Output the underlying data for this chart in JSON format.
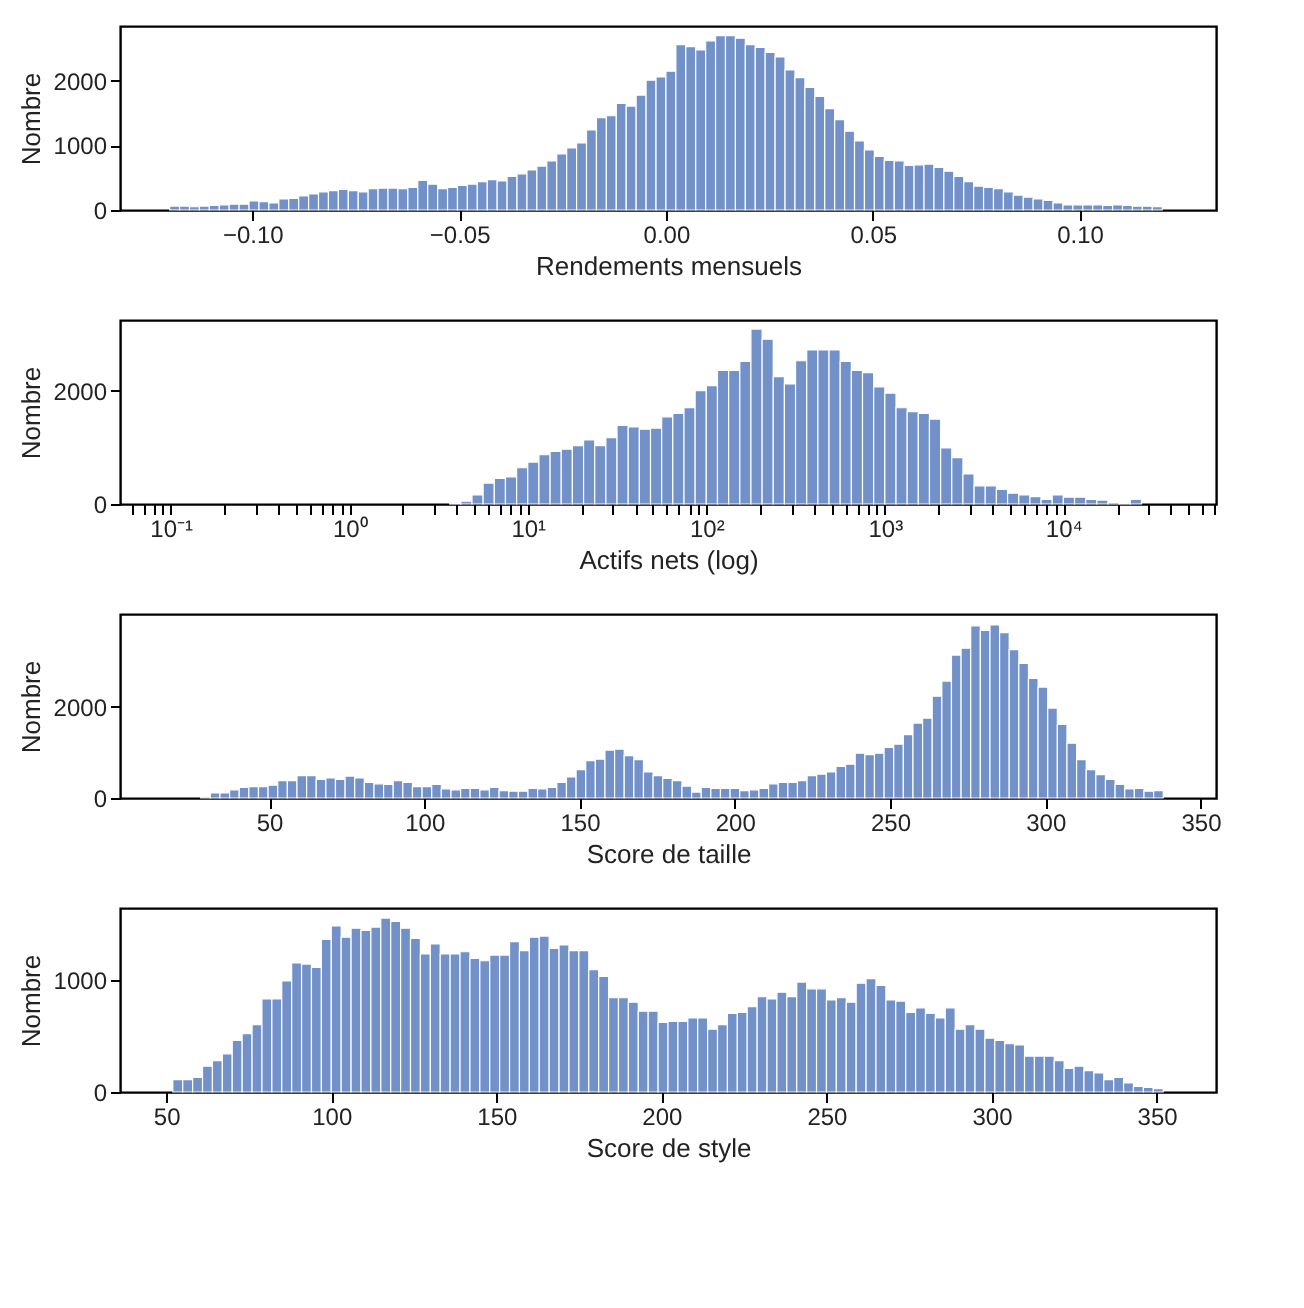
{
  "chart_data": [
    {
      "type": "histogram",
      "color": "#7191c8",
      "xlabel": "Rendements mensuels",
      "ylabel": "Nombre",
      "grid": false,
      "xlim": [
        -0.132,
        0.133
      ],
      "ylim": [
        0,
        2850
      ],
      "xticks": [
        {
          "value": -0.1,
          "label": "−0.10"
        },
        {
          "value": -0.05,
          "label": "−0.05"
        },
        {
          "value": 0,
          "label": "0.00"
        },
        {
          "value": 0.05,
          "label": "0.05"
        },
        {
          "value": 0.1,
          "label": "0.10"
        }
      ],
      "yticks": [
        0,
        1000,
        2000
      ],
      "bins": [
        -0.12,
        -0.1176,
        -0.1152,
        -0.1128,
        -0.1104,
        -0.108,
        -0.1056,
        -0.1032,
        -0.1008,
        -0.0984,
        -0.096,
        -0.0936,
        -0.0912,
        -0.0888,
        -0.0864,
        -0.084,
        -0.0816,
        -0.0792,
        -0.0768,
        -0.0744,
        -0.072,
        -0.0696,
        -0.0672,
        -0.0648,
        -0.0624,
        -0.06,
        -0.0576,
        -0.0552,
        -0.0528,
        -0.0504,
        -0.048,
        -0.0456,
        -0.0432,
        -0.0408,
        -0.0384,
        -0.036,
        -0.0336,
        -0.0312,
        -0.0288,
        -0.0264,
        -0.024,
        -0.0216,
        -0.0192,
        -0.0168,
        -0.0144,
        -0.012,
        -0.0096,
        -0.0072,
        -0.0048,
        -0.0024,
        0,
        0.0024,
        0.0048,
        0.0072,
        0.0096,
        0.012,
        0.0144,
        0.0168,
        0.0192,
        0.0216,
        0.024,
        0.0264,
        0.0288,
        0.0312,
        0.0336,
        0.036,
        0.0384,
        0.0408,
        0.0432,
        0.0456,
        0.048,
        0.0504,
        0.0528,
        0.0552,
        0.0576,
        0.06,
        0.0624,
        0.0648,
        0.0672,
        0.0696,
        0.072,
        0.0744,
        0.0768,
        0.0792,
        0.0816,
        0.084,
        0.0864,
        0.0888,
        0.0912,
        0.0936,
        0.096,
        0.0984,
        0.1008,
        0.1032,
        0.1056,
        0.108,
        0.1104,
        0.1128,
        0.1152,
        0.1176,
        0.12
      ],
      "values": [
        60,
        60,
        50,
        60,
        70,
        80,
        90,
        90,
        140,
        130,
        110,
        170,
        180,
        220,
        250,
        280,
        300,
        320,
        300,
        280,
        330,
        340,
        340,
        330,
        350,
        460,
        400,
        330,
        350,
        380,
        400,
        440,
        470,
        450,
        520,
        560,
        620,
        680,
        760,
        870,
        960,
        1040,
        1240,
        1430,
        1460,
        1650,
        1610,
        1780,
        2010,
        2060,
        2150,
        2560,
        2530,
        2480,
        2620,
        2700,
        2700,
        2660,
        2560,
        2520,
        2440,
        2370,
        2170,
        2050,
        1900,
        1760,
        1570,
        1400,
        1220,
        1070,
        930,
        830,
        770,
        760,
        690,
        700,
        710,
        660,
        600,
        520,
        440,
        370,
        350,
        330,
        280,
        230,
        200,
        170,
        150,
        110,
        80,
        80,
        80,
        80,
        70,
        80,
        70,
        60,
        60,
        50
      ]
    },
    {
      "type": "histogram",
      "color": "#7191c8",
      "xlabel": "Actifs nets (log)",
      "ylabel": "Nombre",
      "grid": false,
      "log": "x",
      "xlim": [
        0.052,
        71600
      ],
      "ylim": [
        0,
        3250
      ],
      "xticks": [
        {
          "value": 0.06,
          "label": null
        },
        {
          "value": 0.07,
          "label": null
        },
        {
          "value": 0.08,
          "label": null
        },
        {
          "value": 0.09,
          "label": null
        },
        {
          "value": 0.1,
          "label": "10⁻¹"
        },
        {
          "value": 0.2,
          "label": null
        },
        {
          "value": 0.3,
          "label": null
        },
        {
          "value": 0.4,
          "label": null
        },
        {
          "value": 0.5,
          "label": null
        },
        {
          "value": 0.6,
          "label": null
        },
        {
          "value": 0.7,
          "label": null
        },
        {
          "value": 0.8,
          "label": null
        },
        {
          "value": 0.9,
          "label": null
        },
        {
          "value": 1,
          "label": "10⁰"
        },
        {
          "value": 2,
          "label": null
        },
        {
          "value": 3,
          "label": null
        },
        {
          "value": 4,
          "label": null
        },
        {
          "value": 5,
          "label": null
        },
        {
          "value": 6,
          "label": null
        },
        {
          "value": 7,
          "label": null
        },
        {
          "value": 8,
          "label": null
        },
        {
          "value": 9,
          "label": null
        },
        {
          "value": 10,
          "label": "10¹"
        },
        {
          "value": 20,
          "label": null
        },
        {
          "value": 30,
          "label": null
        },
        {
          "value": 40,
          "label": null
        },
        {
          "value": 50,
          "label": null
        },
        {
          "value": 60,
          "label": null
        },
        {
          "value": 70,
          "label": null
        },
        {
          "value": 80,
          "label": null
        },
        {
          "value": 90,
          "label": null
        },
        {
          "value": 100,
          "label": "10²"
        },
        {
          "value": 200,
          "label": null
        },
        {
          "value": 300,
          "label": null
        },
        {
          "value": 400,
          "label": null
        },
        {
          "value": 500,
          "label": null
        },
        {
          "value": 600,
          "label": null
        },
        {
          "value": 700,
          "label": null
        },
        {
          "value": 800,
          "label": null
        },
        {
          "value": 900,
          "label": null
        },
        {
          "value": 1000,
          "label": "10³"
        },
        {
          "value": 2000,
          "label": null
        },
        {
          "value": 3000,
          "label": null
        },
        {
          "value": 4000,
          "label": null
        },
        {
          "value": 5000,
          "label": null
        },
        {
          "value": 6000,
          "label": null
        },
        {
          "value": 7000,
          "label": null
        },
        {
          "value": 8000,
          "label": null
        },
        {
          "value": 9000,
          "label": null
        },
        {
          "value": 10000,
          "label": "10⁴"
        },
        {
          "value": 20000,
          "label": null
        },
        {
          "value": 30000,
          "label": null
        },
        {
          "value": 40000,
          "label": null
        },
        {
          "value": 50000,
          "label": null
        },
        {
          "value": 60000,
          "label": null
        },
        {
          "value": 70000,
          "label": null
        }
      ],
      "yticks": [
        0,
        2000
      ],
      "bins": [
        3.652,
        4.217,
        4.87,
        5.623,
        6.494,
        7.499,
        8.66,
        10,
        11.55,
        13.34,
        15.4,
        17.78,
        20.54,
        23.71,
        27.38,
        31.62,
        36.52,
        42.17,
        48.7,
        56.23,
        64.94,
        74.99,
        86.6,
        100,
        115.5,
        133.4,
        154,
        177.8,
        205.4,
        237.1,
        273.8,
        316.2,
        365.2,
        421.7,
        487,
        562.3,
        649.4,
        749.9,
        866,
        1000,
        1155,
        1334,
        1540,
        1778,
        2054,
        2371,
        2738,
        3162,
        3652,
        4217,
        4870,
        5623,
        6494,
        7499,
        8660,
        10000,
        11550,
        13340,
        15400,
        17780,
        20540,
        23710,
        27380
      ],
      "values": [
        20,
        50,
        160,
        370,
        450,
        480,
        640,
        740,
        870,
        930,
        970,
        1030,
        1130,
        1030,
        1170,
        1390,
        1360,
        1320,
        1340,
        1540,
        1600,
        1700,
        2000,
        2090,
        2360,
        2360,
        2520,
        3090,
        2910,
        2250,
        2120,
        2530,
        2720,
        2720,
        2720,
        2520,
        2360,
        2320,
        2070,
        1960,
        1700,
        1630,
        1600,
        1500,
        990,
        820,
        530,
        320,
        320,
        260,
        190,
        160,
        130,
        80,
        160,
        120,
        120,
        80,
        70,
        30,
        20,
        80
      ]
    },
    {
      "type": "histogram",
      "color": "#7191c8",
      "xlabel": "Score de taille",
      "ylabel": "Nombre",
      "grid": false,
      "xlim": [
        2,
        355
      ],
      "ylim": [
        0,
        4030
      ],
      "xticks": [
        50,
        100,
        150,
        200,
        250,
        300,
        350
      ],
      "yticks": [
        0,
        2000
      ],
      "bins": [
        28,
        31.1,
        34.2,
        37.3,
        40.4,
        43.5,
        46.6,
        49.7,
        52.8,
        55.9,
        59,
        62.1,
        65.2,
        68.3,
        71.4,
        74.5,
        77.6,
        80.7,
        83.8,
        86.9,
        90,
        93.1,
        96.2,
        99.3,
        102.4,
        105.5,
        108.6,
        111.7,
        114.8,
        117.9,
        121,
        124.1,
        127.2,
        130.3,
        133.4,
        136.5,
        139.6,
        142.7,
        145.8,
        148.9,
        152,
        155.1,
        158.2,
        161.3,
        164.4,
        167.5,
        170.6,
        173.7,
        176.8,
        179.9,
        183,
        186.1,
        189.2,
        192.3,
        195.4,
        198.5,
        201.6,
        204.7,
        207.8,
        210.9,
        214,
        217.1,
        220.2,
        223.3,
        226.4,
        229.5,
        232.6,
        235.7,
        238.8,
        241.9,
        245,
        248.1,
        251.2,
        254.3,
        257.4,
        260.5,
        263.6,
        266.7,
        269.8,
        272.9,
        276,
        279.1,
        282.2,
        285.3,
        288.4,
        291.5,
        294.6,
        297.7,
        300.8,
        303.9,
        307,
        310.1,
        313.2,
        316.3,
        319.4,
        322.5,
        325.6,
        328.7,
        331.8,
        334.9,
        338
      ],
      "values": [
        30,
        110,
        110,
        180,
        230,
        250,
        250,
        280,
        380,
        380,
        490,
        490,
        410,
        440,
        410,
        480,
        440,
        340,
        310,
        300,
        380,
        340,
        250,
        250,
        300,
        200,
        180,
        210,
        210,
        180,
        230,
        160,
        150,
        150,
        210,
        200,
        230,
        340,
        460,
        620,
        820,
        850,
        1050,
        1070,
        930,
        840,
        570,
        490,
        430,
        380,
        260,
        130,
        230,
        210,
        210,
        210,
        160,
        180,
        210,
        310,
        340,
        340,
        380,
        490,
        520,
        570,
        690,
        740,
        980,
        950,
        980,
        1110,
        1180,
        1390,
        1640,
        1750,
        2230,
        2560,
        3130,
        3280,
        3770,
        3670,
        3790,
        3620,
        3250,
        2950,
        2620,
        2430,
        1970,
        1610,
        1200,
        840,
        620,
        510,
        410,
        300,
        200,
        210,
        150,
        160
      ]
    },
    {
      "type": "histogram",
      "color": "#7191c8",
      "xlabel": "Score de style",
      "ylabel": "Nombre",
      "grid": false,
      "xlim": [
        36,
        368
      ],
      "ylim": [
        0,
        1640
      ],
      "xticks": [
        50,
        100,
        150,
        200,
        250,
        300,
        350
      ],
      "yticks": [
        0,
        1000
      ],
      "bins": [
        52,
        55,
        58,
        61,
        64,
        67,
        70,
        73,
        76,
        79,
        82,
        85,
        88,
        91,
        94,
        97,
        100,
        103,
        106,
        109,
        112,
        115,
        118,
        121,
        124,
        127,
        130,
        133,
        136,
        139,
        142,
        145,
        148,
        151,
        154,
        157,
        160,
        163,
        166,
        169,
        172,
        175,
        178,
        181,
        184,
        187,
        190,
        193,
        196,
        199,
        202,
        205,
        208,
        211,
        214,
        217,
        220,
        223,
        226,
        229,
        232,
        235,
        238,
        241,
        244,
        247,
        250,
        253,
        256,
        259,
        262,
        265,
        268,
        271,
        274,
        277,
        280,
        283,
        286,
        289,
        292,
        295,
        298,
        301,
        304,
        307,
        310,
        313,
        316,
        319,
        322,
        325,
        328,
        331,
        334,
        337,
        340,
        343,
        346,
        349,
        352
      ],
      "values": [
        110,
        110,
        130,
        230,
        280,
        340,
        460,
        520,
        600,
        830,
        830,
        990,
        1150,
        1140,
        1110,
        1360,
        1480,
        1380,
        1460,
        1440,
        1470,
        1550,
        1520,
        1460,
        1370,
        1230,
        1320,
        1230,
        1230,
        1250,
        1190,
        1170,
        1220,
        1220,
        1340,
        1260,
        1380,
        1390,
        1280,
        1310,
        1260,
        1260,
        1090,
        1030,
        840,
        840,
        800,
        720,
        720,
        620,
        630,
        630,
        660,
        660,
        560,
        600,
        700,
        710,
        760,
        850,
        830,
        890,
        850,
        980,
        920,
        920,
        820,
        840,
        800,
        970,
        1010,
        950,
        820,
        810,
        710,
        750,
        700,
        660,
        750,
        560,
        600,
        560,
        480,
        460,
        430,
        420,
        320,
        320,
        320,
        280,
        210,
        230,
        190,
        170,
        110,
        130,
        80,
        50,
        40,
        30
      ]
    }
  ]
}
